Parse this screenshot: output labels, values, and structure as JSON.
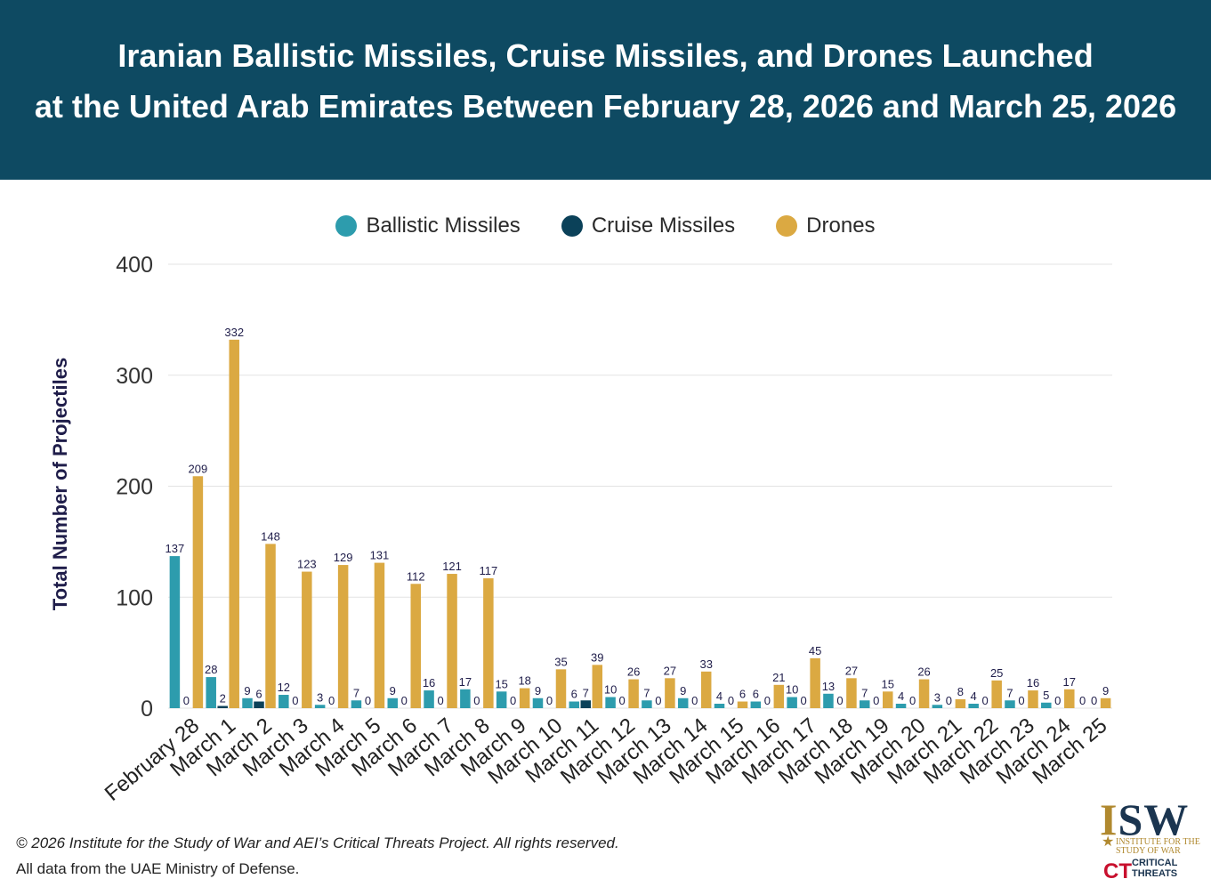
{
  "header": {
    "title_line1": "Iranian Ballistic Missiles, Cruise Missiles, and Drones Launched",
    "title_line2": "at the United Arab Emirates Between February 28, 2026 and March 25, 2026",
    "bg_color": "#0e4a62"
  },
  "chart_data": {
    "type": "bar",
    "title": "Iranian Ballistic Missiles, Cruise Missiles, and Drones Launched at the United Arab Emirates Between February 28, 2026 and March 25, 2026",
    "xlabel": "",
    "ylabel": "Total Number of Projectiles",
    "ylim": [
      0,
      400
    ],
    "yticks": [
      0,
      100,
      200,
      300,
      400
    ],
    "grid": true,
    "legend_position": "top-center",
    "categories": [
      "February 28",
      "March 1",
      "March 2",
      "March 3",
      "March 4",
      "March 5",
      "March 6",
      "March 7",
      "March 8",
      "March 9",
      "March 10",
      "March 11",
      "March 12",
      "March 13",
      "March 14",
      "March 15",
      "March 16",
      "March 17",
      "March 18",
      "March 19",
      "March 20",
      "March 21",
      "March 22",
      "March 23",
      "March 24",
      "March 25"
    ],
    "series": [
      {
        "name": "Ballistic Missiles",
        "color": "#2d9cad",
        "values": [
          137,
          28,
          9,
          12,
          3,
          7,
          9,
          16,
          17,
          15,
          9,
          6,
          10,
          7,
          9,
          4,
          6,
          10,
          13,
          7,
          4,
          3,
          4,
          7,
          5,
          0
        ]
      },
      {
        "name": "Cruise Missiles",
        "color": "#0b4159",
        "values": [
          0,
          2,
          6,
          0,
          0,
          0,
          0,
          0,
          0,
          0,
          0,
          7,
          0,
          0,
          0,
          0,
          0,
          0,
          0,
          0,
          0,
          0,
          0,
          0,
          0,
          0
        ]
      },
      {
        "name": "Drones",
        "color": "#dba942",
        "values": [
          209,
          332,
          148,
          123,
          129,
          131,
          112,
          121,
          117,
          18,
          35,
          39,
          26,
          27,
          33,
          6,
          21,
          45,
          27,
          15,
          26,
          8,
          25,
          16,
          17,
          9
        ]
      }
    ]
  },
  "footer": {
    "copyright": "© 2026 Institute for the Study of War and AEI’s Critical Threats Project. All rights reserved.",
    "source": "All data from the UAE Ministry of Defense."
  },
  "logo": {
    "isw_left": "I",
    "isw_right": "SW",
    "sub1": "INSTITUTE FOR THE",
    "sub2": "STUDY OF WAR",
    "ct1": "CRITICAL",
    "ct2": "THREATS",
    "ct_mark": "CT"
  }
}
